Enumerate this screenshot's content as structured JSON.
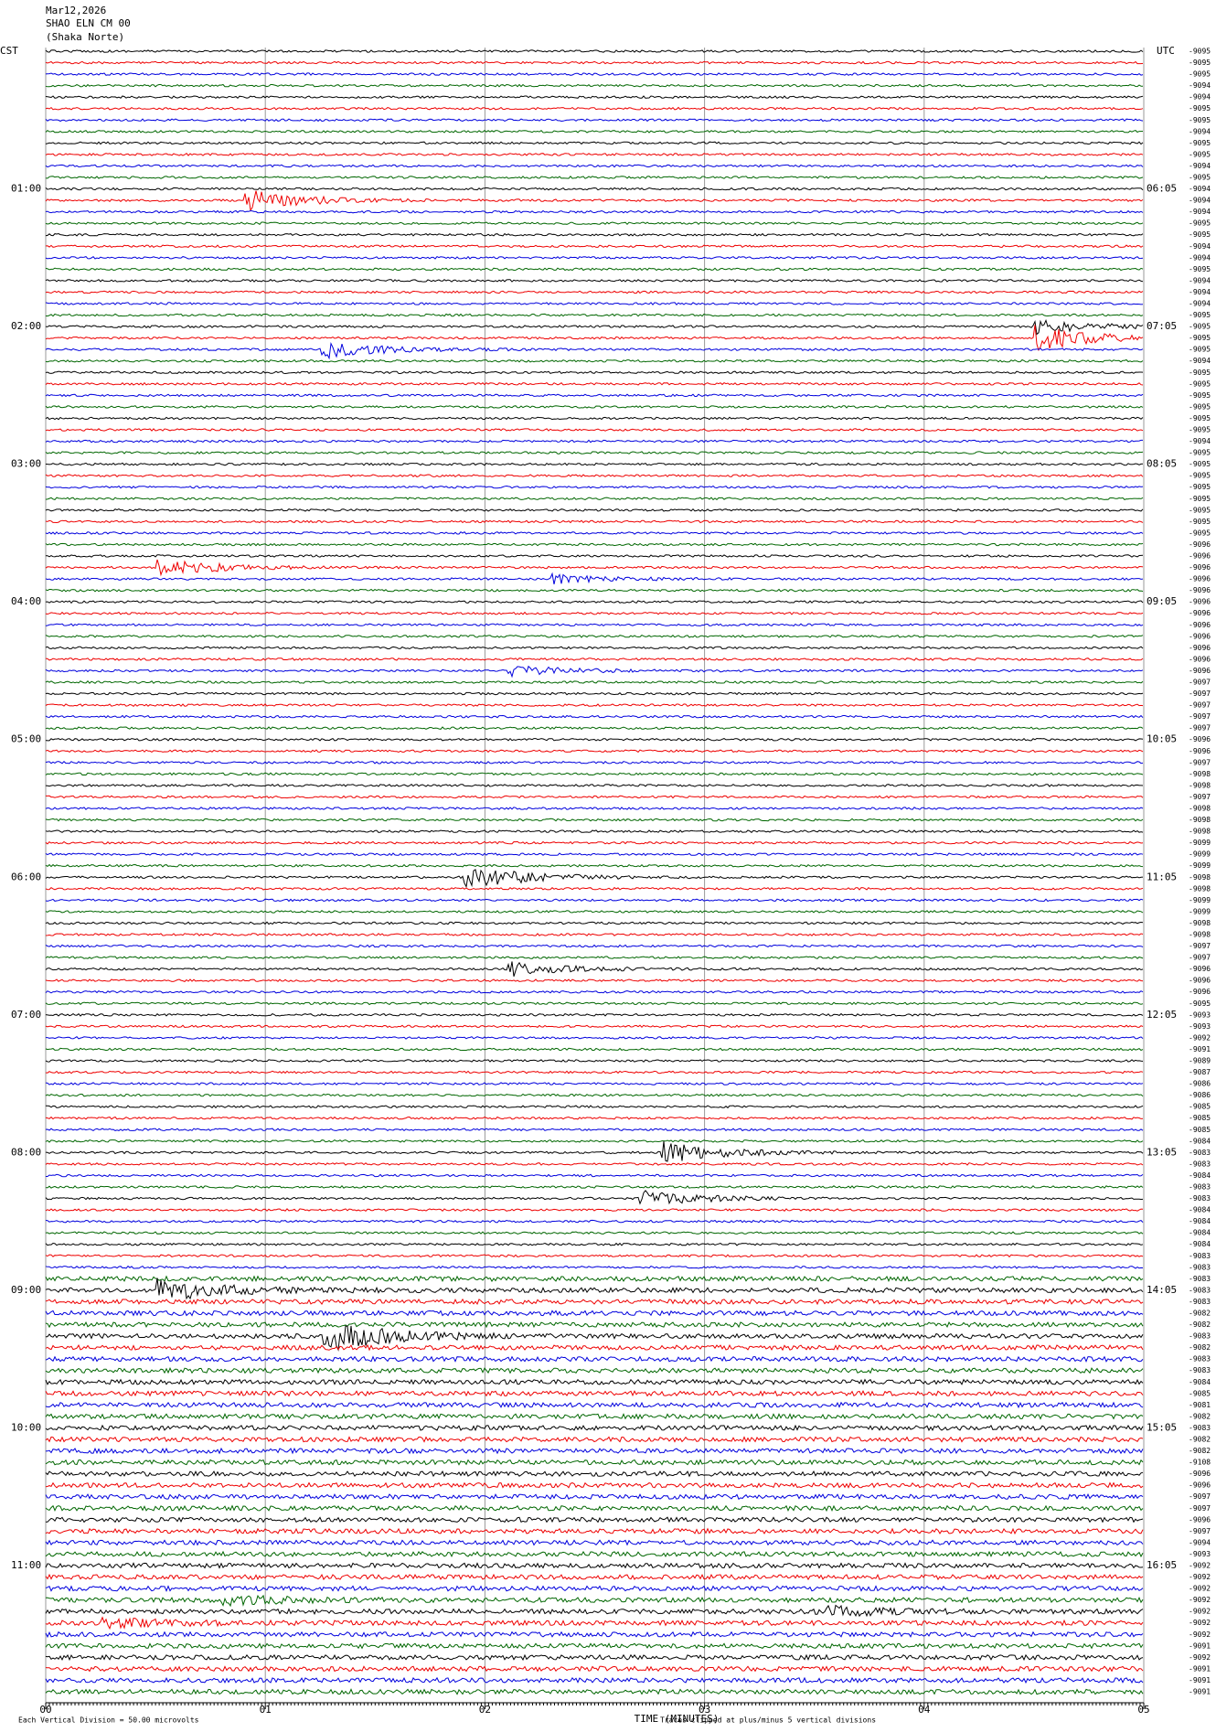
{
  "header": {
    "date": "Mar12,2026",
    "station": "SHAO ELN CM 00",
    "location": "(Shaka Norte)"
  },
  "left_zone": "CST",
  "right_zone": "UTC",
  "cst_hours": [
    "01:00",
    "02:00",
    "03:00",
    "04:00",
    "05:00",
    "06:00",
    "07:00",
    "08:00",
    "09:00",
    "10:00",
    "11:00"
  ],
  "utc_hours": [
    "06:05",
    "07:05",
    "08:05",
    "09:05",
    "10:05",
    "11:05",
    "12:05",
    "13:05",
    "14:05",
    "15:05",
    "16:05"
  ],
  "trace_offsets": [
    "-9095",
    "-9095",
    "-9095",
    "-9094",
    "-9094",
    "-9095",
    "-9095",
    "-9094",
    "-9095",
    "-9095",
    "-9094",
    "-9095",
    "-9094",
    "-9094",
    "-9094",
    "-9095",
    "-9095",
    "-9094",
    "-9094",
    "-9095",
    "-9094",
    "-9094",
    "-9094",
    "-9095",
    "-9095",
    "-9095",
    "-9095",
    "-9094",
    "-9095",
    "-9095",
    "-9095",
    "-9095",
    "-9095",
    "-9095",
    "-9094",
    "-9095",
    "-9095",
    "-9095",
    "-9095",
    "-9095",
    "-9095",
    "-9095",
    "-9095",
    "-9096",
    "-9096",
    "-9096",
    "-9096",
    "-9096",
    "-9096",
    "-9096",
    "-9096",
    "-9096",
    "-9096",
    "-9096",
    "-9096",
    "-9097",
    "-9097",
    "-9097",
    "-9097",
    "-9097",
    "-9096",
    "-9096",
    "-9097",
    "-9098",
    "-9098",
    "-9097",
    "-9098",
    "-9098",
    "-9098",
    "-9099",
    "-9099",
    "-9099",
    "-9098",
    "-9098",
    "-9099",
    "-9099",
    "-9098",
    "-9098",
    "-9097",
    "-9097",
    "-9096",
    "-9096",
    "-9096",
    "-9095",
    "-9093",
    "-9093",
    "-9092",
    "-9091",
    "-9089",
    "-9087",
    "-9086",
    "-9086",
    "-9085",
    "-9085",
    "-9085",
    "-9084",
    "-9083",
    "-9083",
    "-9084",
    "-9083",
    "-9083",
    "-9084",
    "-9084",
    "-9084",
    "-9084",
    "-9083",
    "-9083",
    "-9083",
    "-9083",
    "-9083",
    "-9082",
    "-9082",
    "-9083",
    "-9082",
    "-9083",
    "-9083",
    "-9084",
    "-9085",
    "-9081",
    "-9082",
    "-9083",
    "-9082",
    "-9082",
    "-9108",
    "-9096",
    "-9096",
    "-9097",
    "-9097",
    "-9096",
    "-9097",
    "-9094",
    "-9093",
    "-9092",
    "-9092",
    "-9092",
    "-9092",
    "-9092",
    "-9092",
    "-9092",
    "-9091",
    "-9092",
    "-9091",
    "-9091",
    "-9091"
  ],
  "x_axis": {
    "label": "TIME (MINUTES)",
    "xlim": [
      0,
      5
    ],
    "xticks": [
      {
        "value": 0,
        "label": "00"
      },
      {
        "value": 1,
        "label": "01"
      },
      {
        "value": 2,
        "label": "02"
      },
      {
        "value": 3,
        "label": "03"
      },
      {
        "value": 4,
        "label": "04"
      },
      {
        "value": 5,
        "label": "05"
      }
    ]
  },
  "footer": {
    "scale": "Each Vertical Division = 50.00 microvolts",
    "clip": "Traces clipped at plus/minus 5 vertical divisions"
  }
}
